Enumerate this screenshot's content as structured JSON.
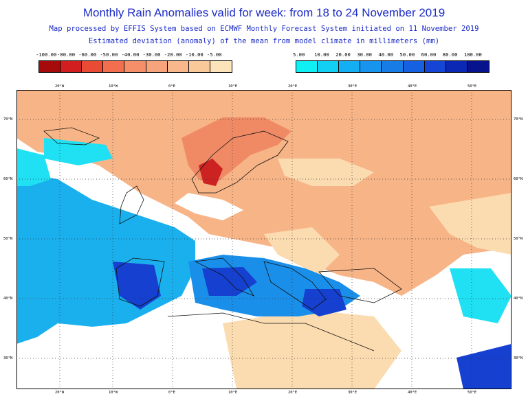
{
  "title": "Monthly Rain Anomalies valid for week: from 18 to 24 November 2019",
  "subtitle1": "Map processed by EFFIS System based on ECMWF Monthly Forecast System initiated on 11 November 2019",
  "subtitle2": "Estimated deviation (anomaly) of the mean from model climate in millimeters (mm)",
  "legend_negative": {
    "labels": [
      "-100.00",
      "-80.00",
      "-60.00",
      "-50.00",
      "-40.00",
      "-30.00",
      "-20.00",
      "-10.00",
      "-5.00"
    ],
    "colors": [
      "#a60a0a",
      "#d21e1e",
      "#ea4b35",
      "#f26e4f",
      "#f58f6a",
      "#f7a47d",
      "#f8b88c",
      "#f9c99a",
      "#fce3ba"
    ]
  },
  "legend_positive": {
    "labels": [
      "5.00",
      "10.00",
      "20.00",
      "30.00",
      "40.00",
      "50.00",
      "60.00",
      "80.00",
      "100.00"
    ],
    "colors": [
      "#0ff0f5",
      "#12cff4",
      "#14aef2",
      "#1694ee",
      "#177ce6",
      "#1660e2",
      "#1445d4",
      "#0b28b5",
      "#06138c"
    ]
  },
  "map": {
    "lon_labels": [
      "20°W",
      "10°W",
      "0°E",
      "10°E",
      "20°E",
      "30°E",
      "40°E",
      "50°E"
    ],
    "lat_labels": [
      "70°N",
      "60°N",
      "50°N",
      "40°N",
      "30°N"
    ],
    "colors": {
      "land": "#ffffff",
      "orange": "#f7b487",
      "orange_dark": "#ef8a65",
      "red": "#cc2222",
      "beige": "#fbdcb0",
      "cyan": "#20e0f4",
      "blue_light": "#1ab0ee",
      "blue_mid": "#1a8fea",
      "blue_dark": "#1540d0"
    }
  }
}
